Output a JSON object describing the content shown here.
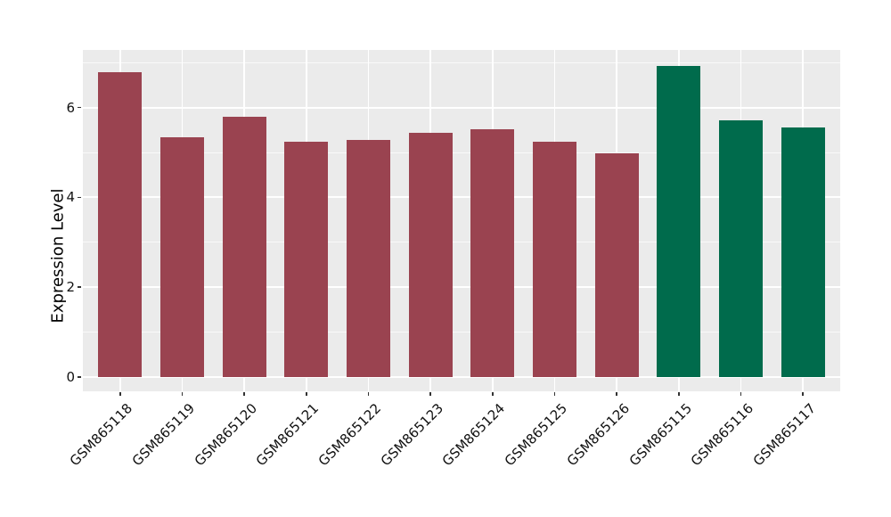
{
  "chart_data": {
    "type": "bar",
    "title": "",
    "xlabel": "",
    "ylabel": "Expression Level",
    "categories": [
      "GSM865118",
      "GSM865119",
      "GSM865120",
      "GSM865121",
      "GSM865122",
      "GSM865123",
      "GSM865124",
      "GSM865125",
      "GSM865126",
      "GSM865115",
      "GSM865116",
      "GSM865117"
    ],
    "values": [
      6.78,
      5.33,
      5.79,
      5.23,
      5.28,
      5.44,
      5.51,
      5.24,
      4.98,
      6.93,
      5.71,
      5.56
    ],
    "bar_groups": [
      "red",
      "red",
      "red",
      "red",
      "red",
      "red",
      "red",
      "red",
      "red",
      "green",
      "green",
      "green"
    ],
    "group_colors": {
      "red": "#9A4350",
      "green": "#006B4C"
    },
    "ylim": [
      -0.31,
      7.28
    ],
    "yticks_major": [
      0,
      2,
      4,
      6
    ],
    "yticks_minor": [
      1,
      3,
      5,
      7
    ],
    "x_tick_rotation_deg": 45,
    "legend": "none",
    "grid": "on",
    "panel_background": "#EBEBEB",
    "gridline_major_color": "#FFFFFF",
    "gridline_minor_color": "rgba(255,255,255,0.7)"
  }
}
